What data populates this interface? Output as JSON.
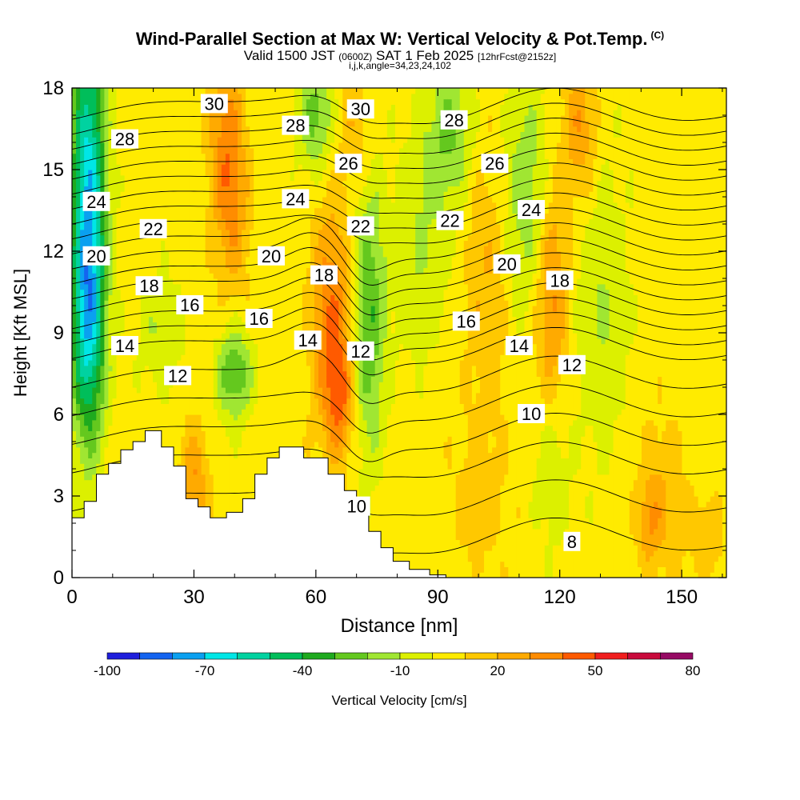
{
  "header": {
    "title": "Wind-Parallel Section at Max W: Vertical Velocity & Pot.Temp.",
    "title_tag": "(C)",
    "valid_prefix": "Valid 1500 JST",
    "valid_utc": "(0600Z)",
    "valid_date": "SAT 1 Feb 2025",
    "fcst": "[12hrFcst@2152z]",
    "indices": "i,j,k,angle=34,23,24,102"
  },
  "colorbar": {
    "label": "Vertical Velocity [cm/s]",
    "tick_labels": [
      "-100",
      "-70",
      "-40",
      "-10",
      "20",
      "50",
      "80"
    ],
    "tick_values": [
      -100,
      -70,
      -40,
      -10,
      20,
      50,
      80
    ],
    "levels": [
      -100,
      -90,
      -80,
      -70,
      -60,
      -50,
      -40,
      -30,
      -20,
      -10,
      0,
      10,
      20,
      30,
      40,
      50,
      60,
      70,
      80
    ],
    "colors": [
      "#1e1edc",
      "#1464f0",
      "#0aa0f0",
      "#00e6e6",
      "#00d2a0",
      "#00be5a",
      "#1eaa1e",
      "#64c81e",
      "#a0e632",
      "#dcf000",
      "#ffeb00",
      "#ffc800",
      "#ffaa00",
      "#ff8c00",
      "#ff5a00",
      "#f01e1e",
      "#c80a3c",
      "#960a64",
      "#640a8c"
    ]
  },
  "chart_data": {
    "type": "heatmap",
    "title": "Wind-Parallel Section at Max W: Vertical Velocity & Pot.Temp.",
    "xlabel": "Distance [nm]",
    "ylabel": "Height [Kft MSL]",
    "xlim": [
      0,
      161
    ],
    "ylim": [
      0,
      18
    ],
    "x_ticks": [
      0,
      30,
      60,
      90,
      120,
      150
    ],
    "y_ticks": [
      0,
      3,
      6,
      9,
      12,
      15,
      18
    ],
    "grid": false,
    "field_units": "cm/s",
    "w_background": 5,
    "w_features": [
      {
        "x": 4,
        "y": 14,
        "sx": 3,
        "sy": 5,
        "amp": -70
      },
      {
        "x": 4,
        "y": 9,
        "sx": 3,
        "sy": 3,
        "amp": -35
      },
      {
        "x": 30,
        "y": 3.5,
        "sx": 2.5,
        "sy": 1.5,
        "amp": 25
      },
      {
        "x": 38,
        "y": 16,
        "sx": 3,
        "sy": 2.5,
        "amp": 30
      },
      {
        "x": 40,
        "y": 13,
        "sx": 3,
        "sy": 2,
        "amp": 15
      },
      {
        "x": 40,
        "y": 7.5,
        "sx": 3,
        "sy": 1.2,
        "amp": -35
      },
      {
        "x": 22,
        "y": 9,
        "sx": 4,
        "sy": 1.5,
        "amp": -15
      },
      {
        "x": 64,
        "y": 9.5,
        "sx": 3.5,
        "sy": 3,
        "amp": 35
      },
      {
        "x": 66,
        "y": 6.5,
        "sx": 2.5,
        "sy": 1.5,
        "amp": 25
      },
      {
        "x": 73,
        "y": 9.5,
        "sx": 3,
        "sy": 3.5,
        "amp": -35
      },
      {
        "x": 60,
        "y": 17,
        "sx": 3,
        "sy": 1.5,
        "amp": -30
      },
      {
        "x": 70,
        "y": 16.5,
        "sx": 3,
        "sy": 1.5,
        "amp": 15
      },
      {
        "x": 93,
        "y": 16.5,
        "sx": 4,
        "sy": 2,
        "amp": -25
      },
      {
        "x": 86,
        "y": 12.5,
        "sx": 5,
        "sy": 3,
        "amp": -15
      },
      {
        "x": 102,
        "y": 11,
        "sx": 4,
        "sy": 3.5,
        "amp": 15
      },
      {
        "x": 118,
        "y": 10.5,
        "sx": 3,
        "sy": 3,
        "amp": 30
      },
      {
        "x": 125,
        "y": 16.5,
        "sx": 3,
        "sy": 2,
        "amp": 25
      },
      {
        "x": 112,
        "y": 14,
        "sx": 4,
        "sy": 3,
        "amp": -25
      },
      {
        "x": 130,
        "y": 10,
        "sx": 5,
        "sy": 4,
        "amp": -15
      },
      {
        "x": 118,
        "y": 4,
        "sx": 3,
        "sy": 2,
        "amp": -15
      },
      {
        "x": 145,
        "y": 3,
        "sx": 4,
        "sy": 2,
        "amp": 15
      },
      {
        "x": 142,
        "y": 2,
        "sx": 2,
        "sy": 1,
        "amp": 18
      },
      {
        "x": 156,
        "y": 1.5,
        "sx": 3,
        "sy": 1,
        "amp": 15
      },
      {
        "x": 100,
        "y": 3,
        "sx": 5,
        "sy": 2,
        "amp": 10
      }
    ],
    "isentrope_levels": [
      8,
      9,
      10,
      11,
      12,
      13,
      14,
      15,
      16,
      17,
      18,
      19,
      20,
      21,
      22,
      23,
      24,
      25,
      26,
      27,
      28,
      29,
      30
    ],
    "contour_labels": [
      {
        "text": "30",
        "x": 35,
        "y": 17.4
      },
      {
        "text": "30",
        "x": 71,
        "y": 17.2
      },
      {
        "text": "28",
        "x": 13,
        "y": 16.1
      },
      {
        "text": "28",
        "x": 55,
        "y": 16.6
      },
      {
        "text": "28",
        "x": 94,
        "y": 16.8
      },
      {
        "text": "26",
        "x": 68,
        "y": 15.2
      },
      {
        "text": "26",
        "x": 104,
        "y": 15.2
      },
      {
        "text": "24",
        "x": 6,
        "y": 13.8
      },
      {
        "text": "24",
        "x": 55,
        "y": 13.9
      },
      {
        "text": "24",
        "x": 113,
        "y": 13.5
      },
      {
        "text": "22",
        "x": 20,
        "y": 12.8
      },
      {
        "text": "22",
        "x": 71,
        "y": 12.9
      },
      {
        "text": "22",
        "x": 93,
        "y": 13.1
      },
      {
        "text": "20",
        "x": 6,
        "y": 11.8
      },
      {
        "text": "20",
        "x": 49,
        "y": 11.8
      },
      {
        "text": "20",
        "x": 107,
        "y": 11.5
      },
      {
        "text": "18",
        "x": 19,
        "y": 10.7
      },
      {
        "text": "18",
        "x": 62,
        "y": 11.1
      },
      {
        "text": "18",
        "x": 120,
        "y": 10.9
      },
      {
        "text": "16",
        "x": 29,
        "y": 10
      },
      {
        "text": "16",
        "x": 46,
        "y": 9.5
      },
      {
        "text": "16",
        "x": 97,
        "y": 9.4
      },
      {
        "text": "14",
        "x": 13,
        "y": 8.5
      },
      {
        "text": "14",
        "x": 58,
        "y": 8.7
      },
      {
        "text": "14",
        "x": 110,
        "y": 8.5
      },
      {
        "text": "12",
        "x": 26,
        "y": 7.4
      },
      {
        "text": "12",
        "x": 71,
        "y": 8.3
      },
      {
        "text": "12",
        "x": 123,
        "y": 7.8
      },
      {
        "text": "10",
        "x": 113,
        "y": 6
      },
      {
        "text": "10",
        "x": 70,
        "y": 2.6
      },
      {
        "text": "8",
        "x": 123,
        "y": 1.3
      }
    ],
    "terrain": [
      [
        0,
        2.2
      ],
      [
        3,
        2.2
      ],
      [
        3,
        2.8
      ],
      [
        6,
        2.8
      ],
      [
        6,
        3.8
      ],
      [
        9,
        3.8
      ],
      [
        9,
        4.2
      ],
      [
        12,
        4.2
      ],
      [
        12,
        4.7
      ],
      [
        15,
        4.7
      ],
      [
        15,
        5.0
      ],
      [
        18,
        5.0
      ],
      [
        18,
        5.4
      ],
      [
        22,
        5.4
      ],
      [
        22,
        4.8
      ],
      [
        25,
        4.8
      ],
      [
        25,
        4.1
      ],
      [
        28,
        4.1
      ],
      [
        28,
        2.9
      ],
      [
        31,
        2.9
      ],
      [
        31,
        2.6
      ],
      [
        34,
        2.6
      ],
      [
        34,
        2.2
      ],
      [
        38,
        2.2
      ],
      [
        38,
        2.4
      ],
      [
        42,
        2.4
      ],
      [
        42,
        2.9
      ],
      [
        45,
        2.9
      ],
      [
        45,
        3.8
      ],
      [
        48,
        3.8
      ],
      [
        48,
        4.4
      ],
      [
        51,
        4.4
      ],
      [
        51,
        4.8
      ],
      [
        57,
        4.8
      ],
      [
        57,
        4.4
      ],
      [
        63,
        4.4
      ],
      [
        63,
        3.8
      ],
      [
        67,
        3.8
      ],
      [
        67,
        3.2
      ],
      [
        70,
        3.2
      ],
      [
        70,
        2.4
      ],
      [
        73,
        2.4
      ],
      [
        73,
        1.7
      ],
      [
        76,
        1.7
      ],
      [
        76,
        1.1
      ],
      [
        79,
        1.1
      ],
      [
        79,
        0.6
      ],
      [
        83,
        0.6
      ],
      [
        83,
        0.3
      ],
      [
        88,
        0.3
      ],
      [
        88,
        0.1
      ],
      [
        92,
        0.1
      ],
      [
        92,
        0
      ]
    ]
  }
}
